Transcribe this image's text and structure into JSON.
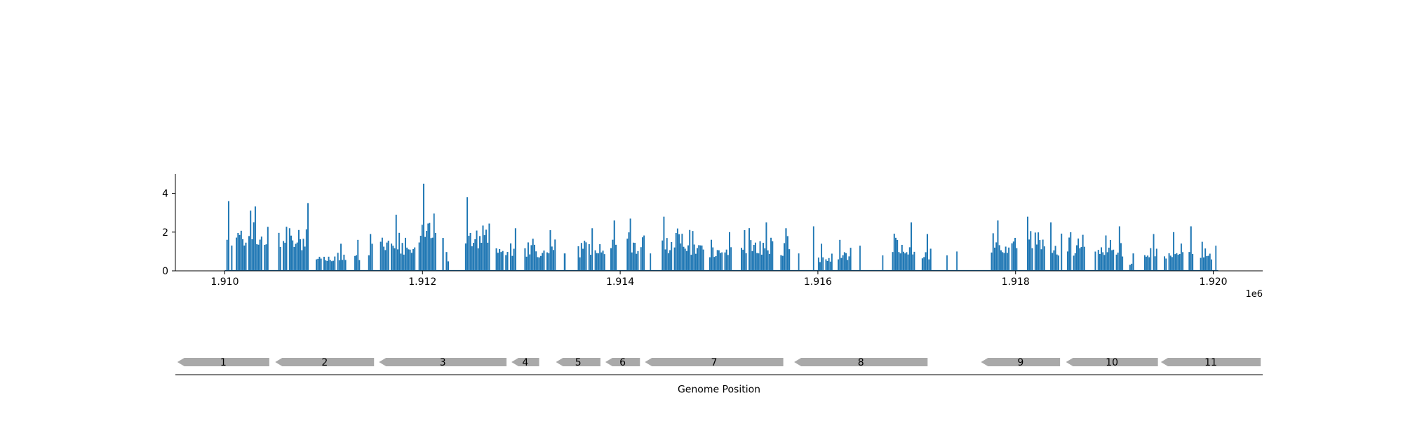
{
  "chart_data": [
    {
      "type": "bar",
      "title": "",
      "xlabel": "",
      "ylabel": "",
      "xlim": [
        1909500,
        1920500
      ],
      "ylim": [
        0,
        5
      ],
      "x_ticks": [
        1910000,
        1912000,
        1914000,
        1916000,
        1918000,
        1920000
      ],
      "x_tick_labels": [
        "1.910",
        "1.912",
        "1.914",
        "1.916",
        "1.918",
        "1.920"
      ],
      "x_offset_label": "1e6",
      "y_ticks": [
        0,
        2,
        4
      ],
      "y_tick_labels": [
        "0",
        "2",
        "4"
      ],
      "grid": false,
      "legend": null,
      "color": "#1f77b4",
      "coverage_regions": [
        {
          "start": 1910000,
          "end": 1910460,
          "max": 3.6
        },
        {
          "start": 1910540,
          "end": 1910850,
          "max": 3.5
        },
        {
          "start": 1910920,
          "end": 1911230,
          "max": 1.4
        },
        {
          "start": 1911310,
          "end": 1911370,
          "max": 1.6
        },
        {
          "start": 1911450,
          "end": 1911500,
          "max": 1.9
        },
        {
          "start": 1911570,
          "end": 1911930,
          "max": 2.9
        },
        {
          "start": 1911960,
          "end": 1912140,
          "max": 4.5
        },
        {
          "start": 1912200,
          "end": 1912270,
          "max": 1.7
        },
        {
          "start": 1912430,
          "end": 1912700,
          "max": 3.8
        },
        {
          "start": 1912740,
          "end": 1912950,
          "max": 2.2
        },
        {
          "start": 1913030,
          "end": 1913350,
          "max": 2.1
        },
        {
          "start": 1913430,
          "end": 1913450,
          "max": 0.9
        },
        {
          "start": 1913570,
          "end": 1913850,
          "max": 2.2
        },
        {
          "start": 1913900,
          "end": 1914000,
          "max": 2.6
        },
        {
          "start": 1914050,
          "end": 1914250,
          "max": 2.7
        },
        {
          "start": 1914300,
          "end": 1914310,
          "max": 0.9
        },
        {
          "start": 1914420,
          "end": 1914850,
          "max": 2.8
        },
        {
          "start": 1914900,
          "end": 1915130,
          "max": 2.0
        },
        {
          "start": 1915220,
          "end": 1915550,
          "max": 2.5
        },
        {
          "start": 1915620,
          "end": 1915720,
          "max": 2.2
        },
        {
          "start": 1915800,
          "end": 1915810,
          "max": 0.9
        },
        {
          "start": 1915950,
          "end": 1915960,
          "max": 2.3
        },
        {
          "start": 1916000,
          "end": 1916150,
          "max": 1.4
        },
        {
          "start": 1916200,
          "end": 1916340,
          "max": 1.6
        },
        {
          "start": 1916420,
          "end": 1916430,
          "max": 1.3
        },
        {
          "start": 1916650,
          "end": 1916660,
          "max": 0.8
        },
        {
          "start": 1916750,
          "end": 1917000,
          "max": 2.5
        },
        {
          "start": 1917050,
          "end": 1917150,
          "max": 1.9
        },
        {
          "start": 1917300,
          "end": 1917310,
          "max": 0.8
        },
        {
          "start": 1917400,
          "end": 1917410,
          "max": 1.0
        },
        {
          "start": 1917750,
          "end": 1918020,
          "max": 2.6
        },
        {
          "start": 1918100,
          "end": 1918300,
          "max": 2.8
        },
        {
          "start": 1918350,
          "end": 1918720,
          "max": 2.5
        },
        {
          "start": 1918800,
          "end": 1919090,
          "max": 2.3
        },
        {
          "start": 1919150,
          "end": 1919200,
          "max": 0.9
        },
        {
          "start": 1919300,
          "end": 1919450,
          "max": 1.9
        },
        {
          "start": 1919500,
          "end": 1919700,
          "max": 2.0
        },
        {
          "start": 1919750,
          "end": 1919800,
          "max": 2.3
        },
        {
          "start": 1919850,
          "end": 1919990,
          "max": 1.5
        },
        {
          "start": 1920020,
          "end": 1920030,
          "max": 1.3
        }
      ]
    },
    {
      "type": "table",
      "title": "",
      "xlabel": "Genome Position",
      "xlim": [
        1909500,
        1920500
      ],
      "color": "#a9a9a9",
      "strand": "-",
      "genes": [
        {
          "label": "1",
          "start": 1909520,
          "end": 1910450
        },
        {
          "label": "2",
          "start": 1910510,
          "end": 1911510
        },
        {
          "label": "3",
          "start": 1911560,
          "end": 1912850
        },
        {
          "label": "4",
          "start": 1912900,
          "end": 1913180
        },
        {
          "label": "5",
          "start": 1913350,
          "end": 1913800
        },
        {
          "label": "6",
          "start": 1913850,
          "end": 1914200
        },
        {
          "label": "7",
          "start": 1914250,
          "end": 1915650
        },
        {
          "label": "8",
          "start": 1915760,
          "end": 1917110
        },
        {
          "label": "9",
          "start": 1917650,
          "end": 1918450
        },
        {
          "label": "10",
          "start": 1918510,
          "end": 1919440
        },
        {
          "label": "11",
          "start": 1919470,
          "end": 1920480
        }
      ]
    }
  ]
}
